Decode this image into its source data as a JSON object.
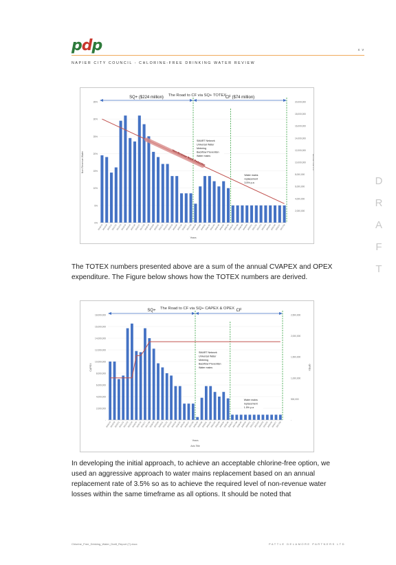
{
  "header": {
    "logo": {
      "p1": "p",
      "d": "d",
      "p2": "p"
    },
    "page_number": "x v",
    "subtitle": "NAPIER CITY COUNCIL - CHLORINE-FREE DRINKING WATER REVIEW"
  },
  "watermark": [
    "D",
    "R",
    "A",
    "F",
    "T"
  ],
  "paragraphs": {
    "p1": "The TOTEX numbers presented above are a sum of the annual CVAPEX and OPEX expenditure. The Figure below shows how the TOTEX numbers are derived.",
    "p2": "In developing the initial approach, to achieve an acceptable chlorine-free option, we used an aggressive approach to water mains replacement based on an annual replacement rate of 3.5% so as to achieve the required level of non-revenue water losses within the same timeframe as all options. It should be noted that"
  },
  "footer": {
    "left": "Chlorine_Free_Drinking_Water_Draft_Report (7).docx",
    "right": "PATTLE DELAMORE PARTNERS LTD"
  },
  "colors": {
    "bar": "#4472c4",
    "trend": "#c0504d",
    "arrow": "#4472c4",
    "divider": "#2e9e3a",
    "accent": "#f0a95a"
  },
  "chart_data": [
    {
      "type": "bar",
      "title": "The Road to CF via SQ+ TOTEX",
      "xlabel": "Years",
      "ylabel": "Non Revenue Water",
      "ylabel_right": "Annual CAPEX",
      "ylim": [
        0,
        35
      ],
      "y_ticks": [
        "0%",
        "5%",
        "10%",
        "15%",
        "20%",
        "25%",
        "30%",
        "35%"
      ],
      "y2_ticks": [
        "",
        "2,000,000",
        "4,000,000",
        "6,000,000",
        "8,000,000",
        "10,000,000",
        "12,000,000",
        "14,000,000",
        "16,000,000",
        "18,000,000",
        "20,000,000"
      ],
      "categories": [
        "2018/19",
        "2019/20",
        "2020/21",
        "2021/22",
        "2022/23",
        "2023/24",
        "2024/25",
        "2025/26",
        "2026/27",
        "2027/28",
        "2028/29",
        "2029/30",
        "2030/31",
        "2031/32",
        "2032/33",
        "2033/34",
        "2034/35",
        "2035/36",
        "2036/37",
        "2037/38",
        "2038/39",
        "2039/40",
        "2040/41",
        "2041/42",
        "2042/43",
        "2043/44",
        "2044/45",
        "2045/46",
        "2046/47",
        "2047/48",
        "2048/49",
        "2049/50",
        "2050/51",
        "2051/52",
        "2052/53",
        "2053/54",
        "2054/55",
        "2055/56",
        "2056/57",
        "2057/58"
      ],
      "values": [
        19.5,
        19,
        14.5,
        16,
        29.5,
        31,
        24.5,
        23.5,
        31,
        28.5,
        25,
        20.5,
        19,
        17,
        17,
        13.5,
        13.5,
        8.5,
        8.5,
        8.5,
        5.5,
        10.5,
        13.5,
        13.5,
        12,
        10.5,
        12,
        10,
        5,
        5,
        5,
        5,
        5,
        5,
        5,
        5,
        5,
        5,
        5,
        5
      ],
      "trend": {
        "name": "Non-Revenue Water Reduction",
        "from": 30,
        "to": 5.5
      },
      "annotations": {
        "sq_label": "SQ+ ($224 million)",
        "cf_label": "CF ($74 million)",
        "smart": [
          "SMART Network",
          "Universal Water",
          "Metering",
          "Backflow Prevention",
          "Water mains"
        ],
        "mains": [
          "Water mains",
          "replacement",
          "3.5% p.a"
        ],
        "trend_label": "Non-Revenue Water Reduction"
      }
    },
    {
      "type": "bar",
      "title": "The Road to CF via SQ+ CAPEX & OPEX",
      "xlabel": "Years",
      "axis_title": "Axis Title",
      "ylabel": "CAPEX",
      "ylabel_right": "OPEX",
      "ylim": [
        0,
        18000000
      ],
      "y_ticks": [
        "-",
        "2,000,000",
        "4,000,000",
        "6,000,000",
        "8,000,000",
        "10,000,000",
        "12,000,000",
        "14,000,000",
        "16,000,000",
        "18,000,000"
      ],
      "y2_ticks": [
        "-",
        "500,000",
        "1,000,000",
        "1,500,000",
        "2,000,000",
        "2,500,000"
      ],
      "categories": [
        "2018/19",
        "2019/20",
        "2020/21",
        "2021/22",
        "2022/23",
        "2023/24",
        "2024/25",
        "2025/26",
        "2026/27",
        "2027/28",
        "2028/29",
        "2029/30",
        "2030/31",
        "2031/32",
        "2032/33",
        "2033/34",
        "2034/35",
        "2035/36",
        "2036/37",
        "2037/38",
        "2038/39",
        "2039/40",
        "2040/41",
        "2041/42",
        "2042/43",
        "2043/44",
        "2044/45",
        "2045/46",
        "2046/47",
        "2047/48",
        "2048/49",
        "2049/50",
        "2050/51",
        "2051/52",
        "2052/53",
        "2053/54",
        "2054/55",
        "2055/56",
        "2056/57",
        "2057/58"
      ],
      "values": [
        10000000,
        10000000,
        7000000,
        7600000,
        15700000,
        16500000,
        11800000,
        11600000,
        15700000,
        14000000,
        12200000,
        9700000,
        9000000,
        8000000,
        7600000,
        5800000,
        5800000,
        2800000,
        2800000,
        2800000,
        500000,
        3800000,
        5800000,
        5800000,
        4800000,
        4000000,
        4800000,
        3700000,
        900000,
        900000,
        900000,
        900000,
        900000,
        900000,
        900000,
        900000,
        900000,
        900000,
        900000,
        900000
      ],
      "opex_line": {
        "name": "OPEX",
        "points": [
          [
            0,
            1000000
          ],
          [
            5,
            1000000
          ],
          [
            6,
            1530000
          ],
          [
            7,
            1530000
          ],
          [
            8,
            1680000
          ],
          [
            9,
            1860000
          ],
          [
            39,
            1860000
          ]
        ]
      },
      "opex_max": 2500000,
      "annotations": {
        "sq_label": "SQ+",
        "cf_label": "CF",
        "smart": [
          "SMART Network",
          "Universal Water",
          "Metering",
          "Backflow Prevention",
          "Water mains"
        ],
        "mains": [
          "Water mains",
          "replacement",
          "1.5% p.a"
        ]
      }
    }
  ]
}
